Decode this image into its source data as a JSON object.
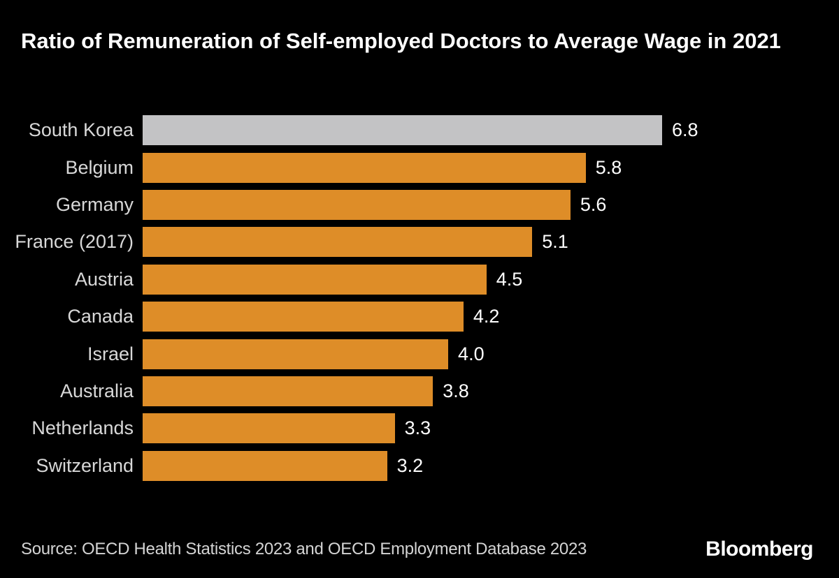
{
  "page": {
    "background": "#000000"
  },
  "chart": {
    "title": "Ratio of Remuneration of Self-employed Doctors to Average Wage in 2021"
  },
  "chart_data": {
    "type": "bar",
    "orientation": "horizontal",
    "title": "Ratio of Remuneration of Self-employed Doctors to Average Wage in 2021",
    "categories": [
      "South Korea",
      "Belgium",
      "Germany",
      "France (2017)",
      "Austria",
      "Canada",
      "Israel",
      "Australia",
      "Netherlands",
      "Switzerland"
    ],
    "values": [
      6.8,
      5.8,
      5.6,
      5.1,
      4.5,
      4.2,
      4.0,
      3.8,
      3.3,
      3.2
    ],
    "value_labels": [
      "6.8",
      "5.8",
      "5.6",
      "5.1",
      "4.5",
      "4.2",
      "4.0",
      "3.8",
      "3.3",
      "3.2"
    ],
    "xlabel": "",
    "ylabel": "",
    "xlim": [
      0,
      6.8
    ],
    "grid": false,
    "legend_position": "none",
    "bar_color": "#DE8D28",
    "highlight_color": "#C3C3C5",
    "highlight_index": 0,
    "label_color": "#d8d8d8",
    "value_color": "#ffffff"
  },
  "footer": {
    "source": "Source: OECD Health Statistics 2023 and OECD Employment Database 2023",
    "logo": "Bloomberg"
  }
}
